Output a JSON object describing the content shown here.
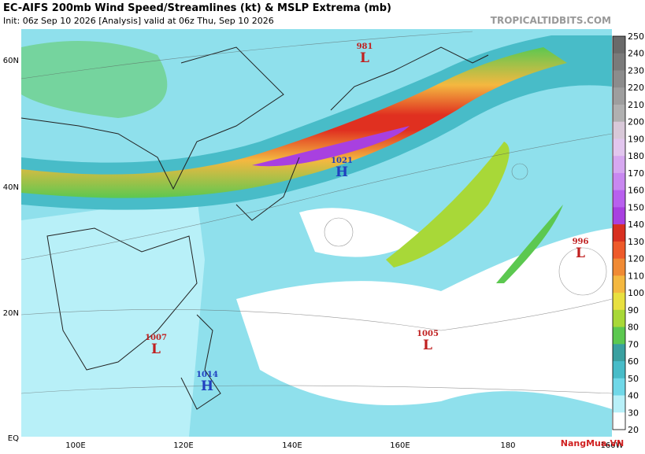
{
  "header": {
    "title": "EC-AIFS 200mb Wind Speed/Streamlines (kt) & MSLP Extrema (mb)",
    "subtitle": "Init: 06z Sep 10 2026   [Analysis]   valid at 06z Thu, Sep 10 2026",
    "source": "TROPICALTIDBITS.COM"
  },
  "lat_labels": [
    "60N",
    "40N",
    "20N",
    "EQ"
  ],
  "lon_labels": [
    "100E",
    "120E",
    "140E",
    "160E",
    "180",
    "160W"
  ],
  "systems": [
    {
      "value": "981",
      "letter": "L"
    },
    {
      "value": "1021",
      "letter": "H"
    },
    {
      "value": "996",
      "letter": "L"
    },
    {
      "value": "1007",
      "letter": "L"
    },
    {
      "value": "1005",
      "letter": "L"
    },
    {
      "value": "1014",
      "letter": "H"
    }
  ],
  "colorbar": {
    "ticks": [
      250,
      240,
      230,
      220,
      210,
      200,
      190,
      180,
      170,
      160,
      150,
      140,
      130,
      120,
      110,
      100,
      90,
      80,
      70,
      60,
      50,
      40,
      30,
      20
    ],
    "colors": [
      "#6a6a6a",
      "#7a7a7a",
      "#8c8c8c",
      "#9e9e9e",
      "#b0b0b0",
      "#d8c8d8",
      "#e2c6ee",
      "#d6a8f0",
      "#c888f0",
      "#b860ee",
      "#a840e0",
      "#d83020",
      "#ee5a2a",
      "#f08a34",
      "#f4b840",
      "#e8e040",
      "#a8d838",
      "#5cc850",
      "#3aa0a0",
      "#48bcc8",
      "#70d8e8",
      "#b8f0f8",
      "#ffffff"
    ]
  },
  "watermark": "NangMua.VN"
}
